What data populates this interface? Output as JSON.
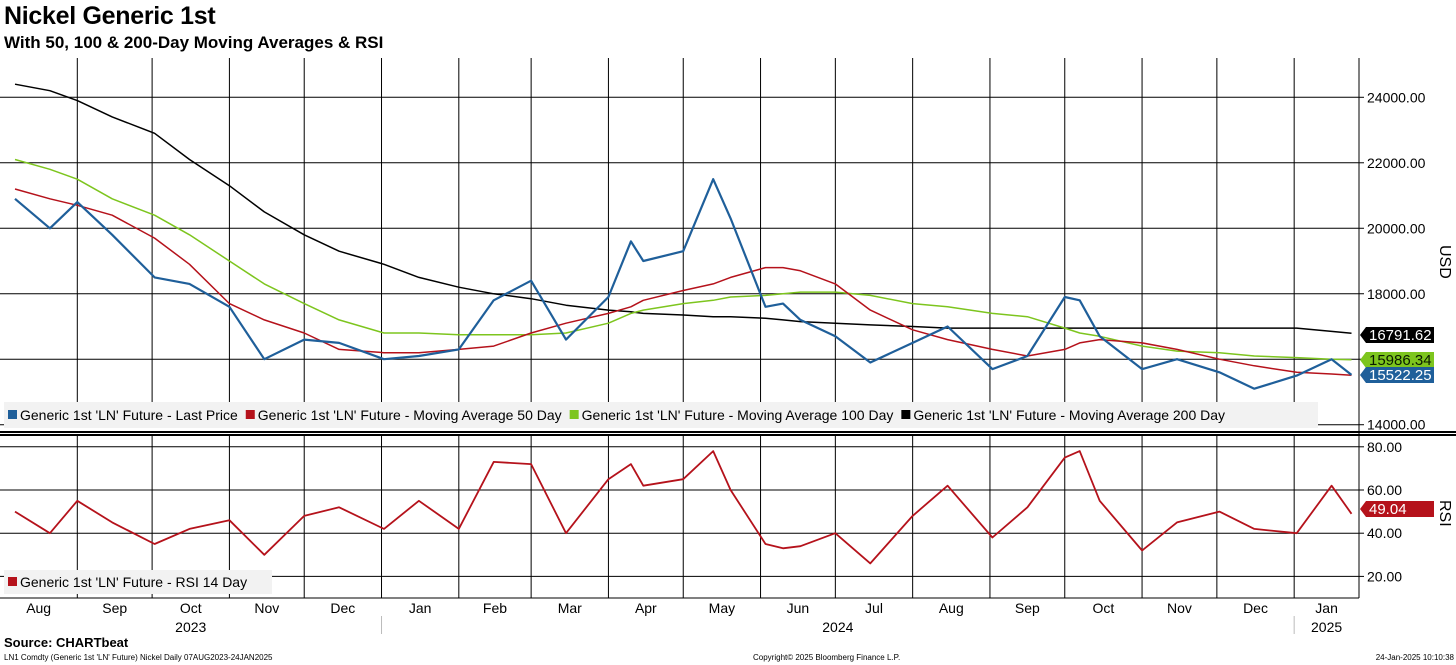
{
  "title": "Nickel Generic 1st",
  "subtitle": "With 50, 100 & 200-Day Moving Averages & RSI",
  "source_label": "Source: CHARTbeat",
  "footer": {
    "left": "LN1 Comdty (Generic 1st 'LN' Future) Nickel  Daily 07AUG2023-24JAN2025",
    "center": "Copyright© 2025 Bloomberg Finance L.P.",
    "right": "24-Jan-2025 10:10:38"
  },
  "colors": {
    "last_price": "#1f5f9a",
    "ma50": "#b5121b",
    "ma100": "#7dc51e",
    "ma200": "#000000",
    "rsi": "#b5121b"
  },
  "chart_data": [
    {
      "type": "line",
      "panel": "price",
      "ylabel": "USD",
      "ylim": [
        13900,
        25200
      ],
      "yticks": [
        "14000.00",
        "16000.00",
        "18000.00",
        "20000.00",
        "22000.00",
        "24000.00"
      ],
      "grid": true,
      "legend_position": "bottom-left",
      "x": [
        "2023-08-07",
        "2023-08-21",
        "2023-09-01",
        "2023-09-15",
        "2023-10-02",
        "2023-10-16",
        "2023-11-01",
        "2023-11-15",
        "2023-12-01",
        "2023-12-15",
        "2024-01-02",
        "2024-01-16",
        "2024-02-01",
        "2024-02-15",
        "2024-03-01",
        "2024-03-15",
        "2024-04-01",
        "2024-04-10",
        "2024-04-15",
        "2024-05-01",
        "2024-05-13",
        "2024-05-20",
        "2024-06-03",
        "2024-06-10",
        "2024-06-17",
        "2024-07-01",
        "2024-07-15",
        "2024-08-01",
        "2024-08-15",
        "2024-09-02",
        "2024-09-16",
        "2024-10-01",
        "2024-10-07",
        "2024-10-15",
        "2024-11-01",
        "2024-11-15",
        "2024-12-02",
        "2024-12-16",
        "2025-01-02",
        "2025-01-16",
        "2025-01-24"
      ],
      "series": [
        {
          "name": "Generic 1st 'LN' Future - Last Price",
          "values": [
            20900,
            20000,
            20800,
            19800,
            18500,
            18300,
            17600,
            16000,
            16600,
            16500,
            16000,
            16100,
            16300,
            17800,
            18400,
            16600,
            17900,
            19600,
            19000,
            19300,
            21500,
            20300,
            17600,
            17700,
            17200,
            16700,
            15900,
            16500,
            17000,
            15700,
            16100,
            17900,
            17800,
            16700,
            15700,
            16000,
            15600,
            15100,
            15500,
            16000,
            15522
          ]
        },
        {
          "name": "Generic 1st 'LN' Future - Moving Average 50 Day",
          "values": [
            21200,
            20900,
            20700,
            20400,
            19700,
            18900,
            17700,
            17200,
            16800,
            16300,
            16200,
            16200,
            16300,
            16400,
            16800,
            17100,
            17400,
            17600,
            17800,
            18100,
            18300,
            18500,
            18800,
            18800,
            18700,
            18300,
            17500,
            16900,
            16600,
            16300,
            16100,
            16300,
            16500,
            16600,
            16500,
            16300,
            16000,
            15800,
            15600,
            15550,
            15510
          ]
        },
        {
          "name": "Generic 1st 'LN' Future - Moving Average 100 Day",
          "values": [
            22100,
            21800,
            21500,
            20900,
            20400,
            19800,
            19000,
            18300,
            17700,
            17200,
            16800,
            16800,
            16750,
            16750,
            16750,
            16800,
            17100,
            17400,
            17500,
            17700,
            17800,
            17900,
            17950,
            18000,
            18050,
            18050,
            17950,
            17700,
            17600,
            17400,
            17300,
            16950,
            16800,
            16700,
            16400,
            16250,
            16200,
            16100,
            16050,
            16000,
            15986
          ]
        },
        {
          "name": "Generic 1st 'LN' Future - Moving Average 200 Day",
          "values": [
            24400,
            24200,
            23900,
            23400,
            22900,
            22100,
            21300,
            20500,
            19800,
            19300,
            18900,
            18500,
            18200,
            18000,
            17850,
            17650,
            17500,
            17450,
            17400,
            17350,
            17300,
            17300,
            17250,
            17200,
            17150,
            17100,
            17050,
            17000,
            16950,
            16950,
            16950,
            16950,
            16950,
            16950,
            16950,
            16950,
            16950,
            16950,
            16950,
            16850,
            16792
          ]
        }
      ],
      "last_values": [
        {
          "series": "Generic 1st 'LN' Future - Moving Average 200 Day",
          "label": "16791.62"
        },
        {
          "series": "Generic 1st 'LN' Future - Moving Average 100 Day",
          "label": "15986.34"
        },
        {
          "series": "Generic 1st 'LN' Future - Last Price",
          "label": "15522.25"
        }
      ]
    },
    {
      "type": "line",
      "panel": "rsi",
      "ylabel": "RSI",
      "ylim": [
        10,
        85
      ],
      "yticks": [
        "20.00",
        "40.00",
        "60.00",
        "80.00"
      ],
      "grid": true,
      "legend_position": "bottom-left",
      "x": [
        "2023-08-07",
        "2023-08-21",
        "2023-09-01",
        "2023-09-15",
        "2023-10-02",
        "2023-10-16",
        "2023-11-01",
        "2023-11-15",
        "2023-12-01",
        "2023-12-15",
        "2024-01-02",
        "2024-01-16",
        "2024-02-01",
        "2024-02-15",
        "2024-03-01",
        "2024-03-15",
        "2024-04-01",
        "2024-04-10",
        "2024-04-15",
        "2024-05-01",
        "2024-05-13",
        "2024-05-20",
        "2024-06-03",
        "2024-06-10",
        "2024-06-17",
        "2024-07-01",
        "2024-07-15",
        "2024-08-01",
        "2024-08-15",
        "2024-09-02",
        "2024-09-16",
        "2024-10-01",
        "2024-10-07",
        "2024-10-15",
        "2024-11-01",
        "2024-11-15",
        "2024-12-02",
        "2024-12-16",
        "2025-01-02",
        "2025-01-16",
        "2025-01-24"
      ],
      "series": [
        {
          "name": "Generic 1st 'LN' Future - RSI 14 Day",
          "values": [
            50,
            40,
            55,
            45,
            35,
            42,
            46,
            30,
            48,
            52,
            42,
            55,
            42,
            73,
            72,
            40,
            65,
            72,
            62,
            65,
            78,
            60,
            35,
            33,
            34,
            40,
            26,
            48,
            62,
            38,
            52,
            75,
            78,
            55,
            32,
            45,
            50,
            42,
            40,
            62,
            49
          ]
        }
      ],
      "last_values": [
        {
          "series": "Generic 1st 'LN' Future - RSI 14 Day",
          "label": "49.04"
        }
      ]
    }
  ],
  "x_axis": {
    "months": [
      "Aug",
      "Sep",
      "Oct",
      "Nov",
      "Dec",
      "Jan",
      "Feb",
      "Mar",
      "Apr",
      "May",
      "Jun",
      "Jul",
      "Aug",
      "Sep",
      "Oct",
      "Nov",
      "Dec",
      "Jan"
    ],
    "years": [
      "2023",
      "2024",
      "2025"
    ]
  }
}
